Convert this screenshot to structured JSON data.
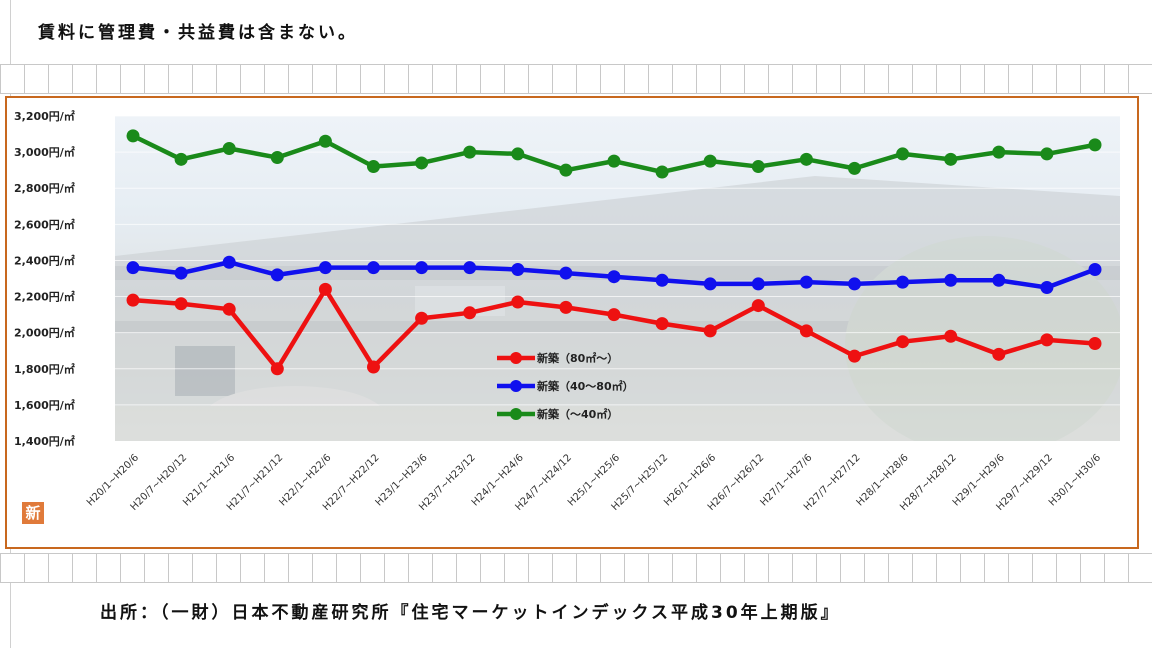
{
  "note": "賃料に管理費・共益費は含まない。",
  "source": "出所：（一財）日本不動産研究所『住宅マーケットインデックス平成30年上期版』",
  "badge": "新",
  "colors": {
    "frame": "#c8681e",
    "red": "#ee1111",
    "blue": "#1010ee",
    "green": "#1a8a1a"
  },
  "chart_data": {
    "type": "line",
    "title": "",
    "xlabel": "",
    "ylabel": "",
    "ylim": [
      1400,
      3200
    ],
    "yticks": [
      {
        "value": 3200,
        "label": "3,200円/㎡"
      },
      {
        "value": 3000,
        "label": "3,000円/㎡"
      },
      {
        "value": 2800,
        "label": "2,800円/㎡"
      },
      {
        "value": 2600,
        "label": "2,600円/㎡"
      },
      {
        "value": 2400,
        "label": "2,400円/㎡"
      },
      {
        "value": 2200,
        "label": "2,200円/㎡"
      },
      {
        "value": 2000,
        "label": "2,000円/㎡"
      },
      {
        "value": 1800,
        "label": "1,800円/㎡"
      },
      {
        "value": 1600,
        "label": "1,600円/㎡"
      },
      {
        "value": 1400,
        "label": "1,400円/㎡"
      }
    ],
    "categories": [
      "H20/1~H20/6",
      "H20/7~H20/12",
      "H21/1~H21/6",
      "H21/7~H21/12",
      "H22/1~H22/6",
      "H22/7~H22/12",
      "H23/1~H23/6",
      "H23/7~H23/12",
      "H24/1~H24/6",
      "H24/7~H24/12",
      "H25/1~H25/6",
      "H25/7~H25/12",
      "H26/1~H26/6",
      "H26/7~H26/12",
      "H27/1~H27/6",
      "H27/7~H27/12",
      "H28/1~H28/6",
      "H28/7~H28/12",
      "H29/1~H29/6",
      "H29/7~H29/12",
      "H30/1~H30/6"
    ],
    "legend_position": "center",
    "series": [
      {
        "name": "新築（80㎡～）",
        "color": "#ee1111",
        "values": [
          2180,
          2160,
          2130,
          1800,
          2240,
          1810,
          2080,
          2110,
          2170,
          2140,
          2100,
          2050,
          2010,
          2150,
          2010,
          1870,
          1950,
          1980,
          1880,
          1960,
          1940
        ]
      },
      {
        "name": "新築（40～80㎡）",
        "color": "#1010ee",
        "values": [
          2360,
          2330,
          2390,
          2320,
          2360,
          2360,
          2360,
          2360,
          2350,
          2330,
          2310,
          2290,
          2270,
          2270,
          2280,
          2270,
          2280,
          2290,
          2290,
          2250,
          2350
        ]
      },
      {
        "name": "新築（～40㎡）",
        "color": "#1a8a1a",
        "values": [
          3090,
          2960,
          3020,
          2970,
          3060,
          2920,
          2940,
          3000,
          2990,
          2900,
          2950,
          2890,
          2950,
          2920,
          2960,
          2910,
          2990,
          2960,
          3000,
          2990,
          3040
        ]
      }
    ]
  }
}
